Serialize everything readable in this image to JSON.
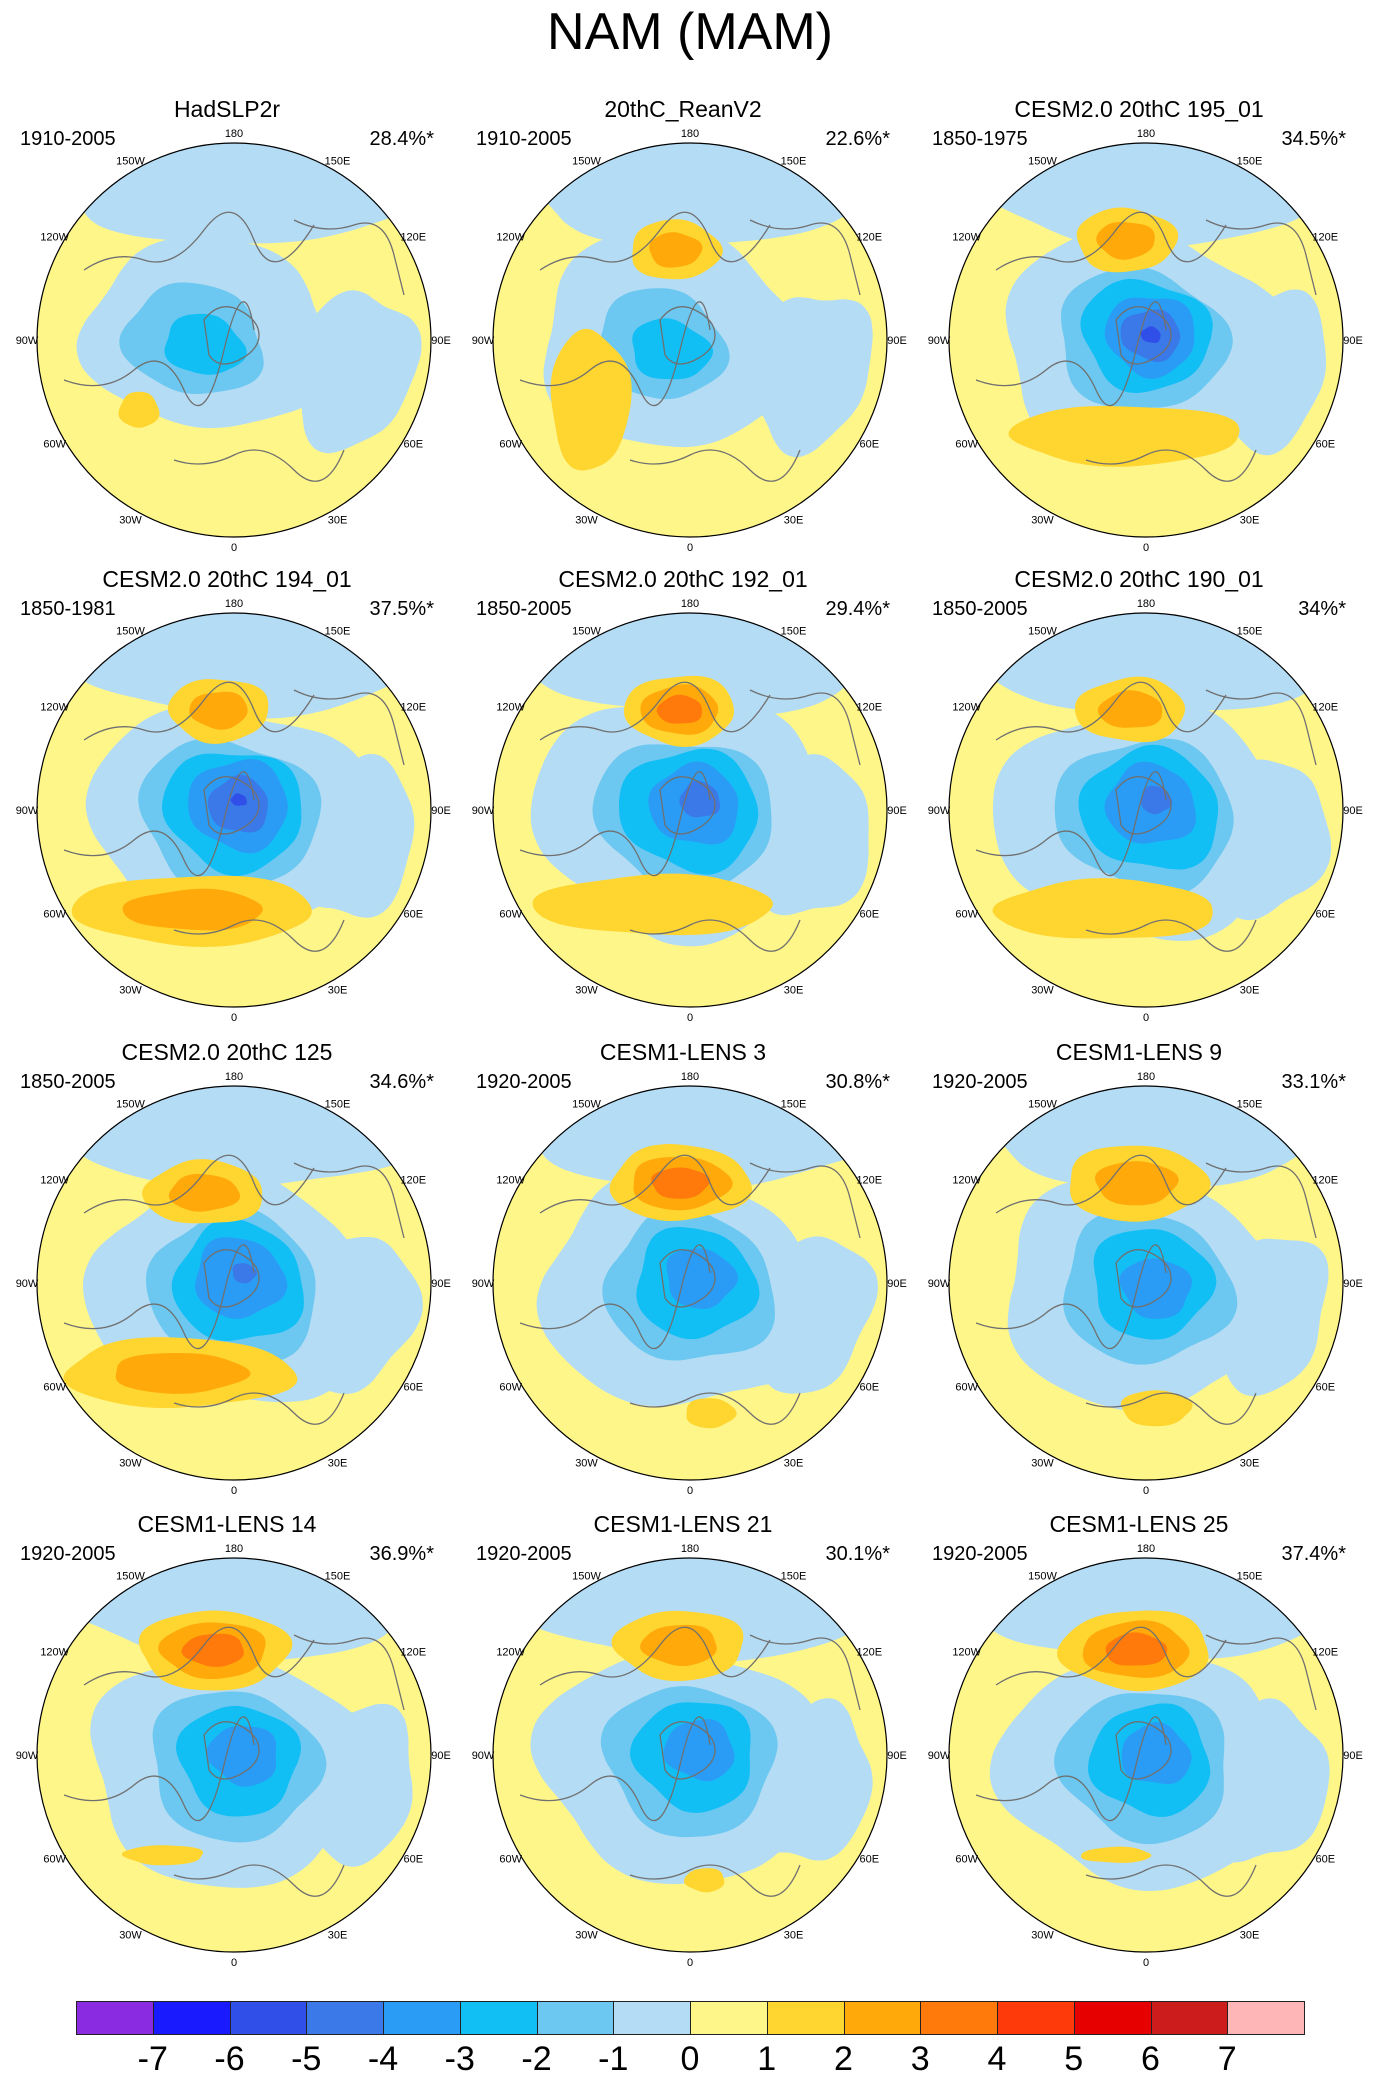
{
  "figure_title": "NAM (MAM)",
  "longitude_labels": [
    "180",
    "150E",
    "120E",
    "90E",
    "60E",
    "30E",
    "0",
    "30W",
    "60W",
    "90W",
    "120W",
    "150W"
  ],
  "colors": {
    "levels": [
      "#8a2be2",
      "#1a1aff",
      "#2f4fe8",
      "#3b78e8",
      "#2a9cf5",
      "#12bff5",
      "#6cc8f0",
      "#b4dcf4",
      "#fff68a",
      "#ffd530",
      "#ffaa0a",
      "#ff7a0a",
      "#ff3a0a",
      "#e60000",
      "#cc1c1c",
      "#ffb6b6"
    ],
    "coast": "#707070",
    "circle": "#000000"
  },
  "colorbar": {
    "labels": [
      "-7",
      "-6",
      "-5",
      "-4",
      "-3",
      "-2",
      "-1",
      "0",
      "1",
      "2",
      "3",
      "4",
      "5",
      "6",
      "7"
    ]
  },
  "panels": [
    {
      "title": "HadSLP2r",
      "period": "1910-2005",
      "pct": "28.4%*"
    },
    {
      "title": "20thC_ReanV2",
      "period": "1910-2005",
      "pct": "22.6%*"
    },
    {
      "title": "CESM2.0 20thC 195_01",
      "period": "1850-1975",
      "pct": "34.5%*"
    },
    {
      "title": "CESM2.0 20thC 194_01",
      "period": "1850-1981",
      "pct": "37.5%*"
    },
    {
      "title": "CESM2.0 20thC 192_01",
      "period": "1850-2005",
      "pct": "29.4%*"
    },
    {
      "title": "CESM2.0 20thC 190_01",
      "period": "1850-2005",
      "pct": "34%*"
    },
    {
      "title": "CESM2.0 20thC 125",
      "period": "1850-2005",
      "pct": "34.6%*"
    },
    {
      "title": "CESM1-LENS 3",
      "period": "1920-2005",
      "pct": "30.8%*"
    },
    {
      "title": "CESM1-LENS 9",
      "period": "1920-2005",
      "pct": "33.1%*"
    },
    {
      "title": "CESM1-LENS 14",
      "period": "1920-2005",
      "pct": "36.9%*"
    },
    {
      "title": "CESM1-LENS 21",
      "period": "1920-2005",
      "pct": "30.1%*"
    },
    {
      "title": "CESM1-LENS 25",
      "period": "1920-2005",
      "pct": "37.4%*"
    }
  ],
  "chart_data": {
    "type": "heatmap",
    "title": "NAM (MAM)",
    "projection": "north-polar stereographic",
    "colorbar_levels": [
      -7,
      -6,
      -5,
      -4,
      -3,
      -2,
      -1,
      0,
      1,
      2,
      3,
      4,
      5,
      6,
      7
    ],
    "panel_extremes": [
      {
        "panel": "HadSLP2r",
        "min": -3,
        "max": 1
      },
      {
        "panel": "20thC_ReanV2",
        "min": -3,
        "max": 2
      },
      {
        "panel": "CESM2.0 20thC 195_01",
        "min": -6,
        "max": 2
      },
      {
        "panel": "CESM2.0 20thC 194_01",
        "min": -6,
        "max": 3
      },
      {
        "panel": "CESM2.0 20thC 192_01",
        "min": -5,
        "max": 4
      },
      {
        "panel": "CESM2.0 20thC 190_01",
        "min": -5,
        "max": 2
      },
      {
        "panel": "CESM2.0 20thC 125",
        "min": -5,
        "max": 3
      },
      {
        "panel": "CESM1-LENS 3",
        "min": -4,
        "max": 4
      },
      {
        "panel": "CESM1-LENS 9",
        "min": -4,
        "max": 3
      },
      {
        "panel": "CESM1-LENS 14",
        "min": -5,
        "max": 4
      },
      {
        "panel": "CESM1-LENS 21",
        "min": -5,
        "max": 3
      },
      {
        "panel": "CESM1-LENS 25",
        "min": -5,
        "max": 4
      }
    ]
  }
}
